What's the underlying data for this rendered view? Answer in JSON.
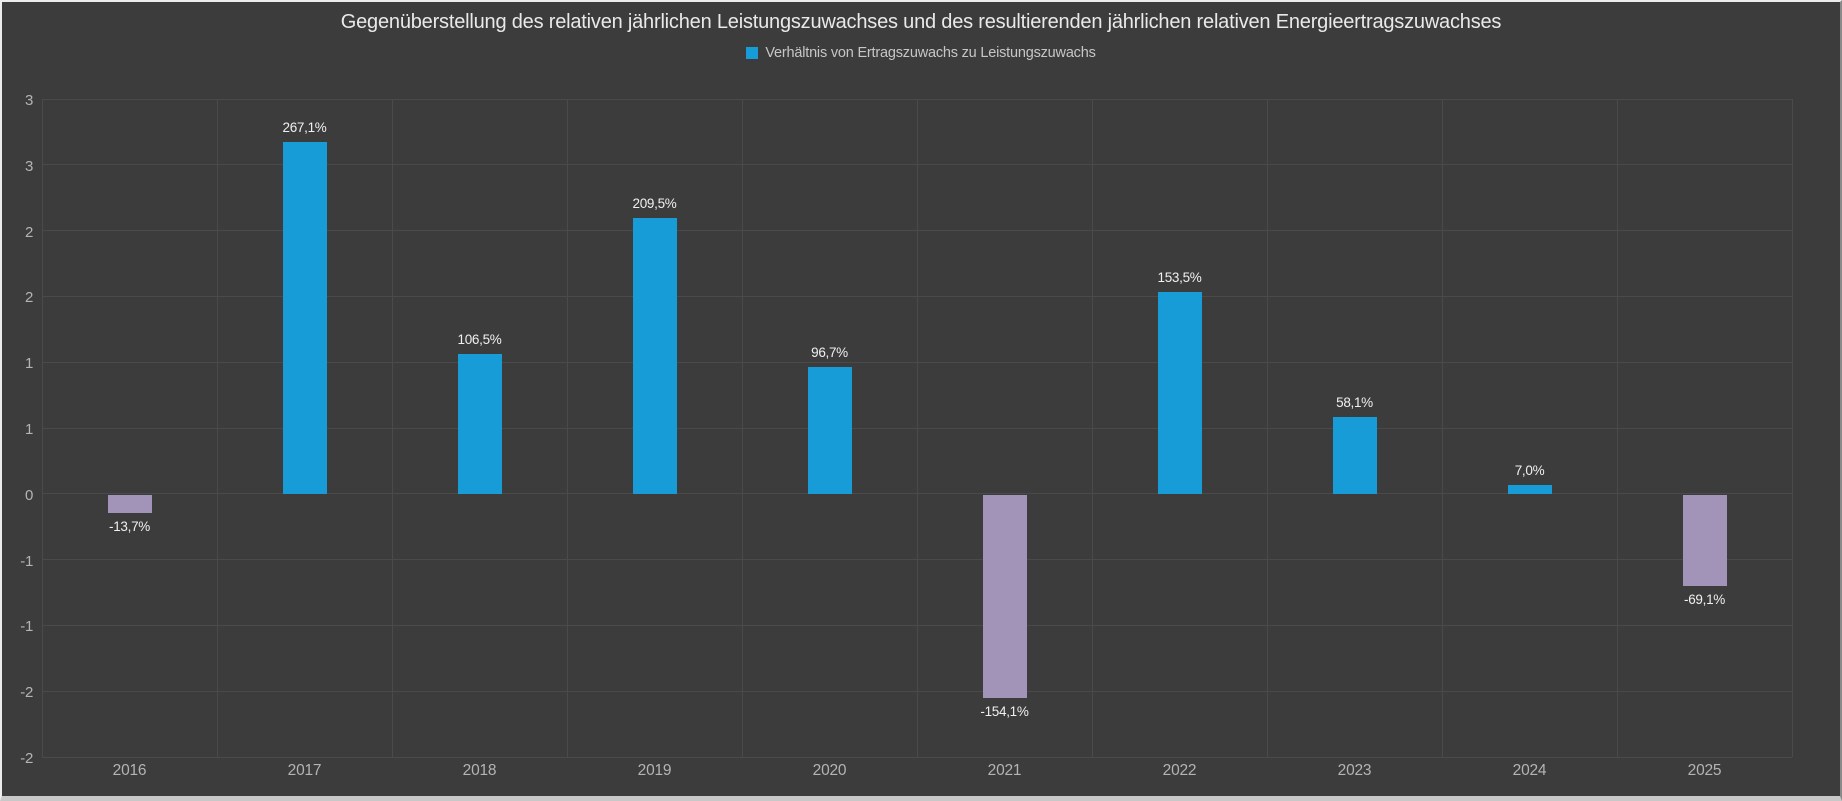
{
  "chart": {
    "title": "Gegenüberstellung des relativen jährlichen Leistungszuwachses und des resultierenden jährlichen relativen Energieertragszuwachses",
    "legend_label": "Verhältnis von Ertragszuwachs zu Leistungszuwachs"
  },
  "chart_data": {
    "type": "bar",
    "title": "Gegenüberstellung des relativen jährlichen Leistungszuwachses und des resultierenden jährlichen relativen Energieertragszuwachses",
    "legend_entries": [
      "Verhältnis von Ertragszuwachs zu Leistungszuwachs"
    ],
    "legend_position": "top",
    "grid": true,
    "categories": [
      "2016",
      "2017",
      "2018",
      "2019",
      "2020",
      "2021",
      "2022",
      "2023",
      "2024",
      "2025"
    ],
    "series": [
      {
        "name": "Verhältnis von Ertragszuwachs zu Leistungszuwachs",
        "unit": "%",
        "values": [
          -13.7,
          267.1,
          106.5,
          209.5,
          96.7,
          -154.1,
          153.5,
          58.1,
          7.0,
          -69.1
        ]
      }
    ],
    "value_labels": [
      "-13,7%",
      "267,1%",
      "106,5%",
      "209,5%",
      "96,7%",
      "-154,1%",
      "153,5%",
      "58,1%",
      "7,0%",
      "-69,1%"
    ],
    "xlabel": "",
    "ylabel": "",
    "ylim": [
      -2.0,
      3.0
    ],
    "ytick_step": 0.5,
    "ytick_labels_rendered": [
      "3",
      "3",
      "2",
      "2",
      "1",
      "1",
      "0",
      "-1",
      "-1",
      "-2",
      "-2"
    ],
    "colors": {
      "positive_bar": "#189CD8",
      "negative_bar": "#A294B8",
      "background": "#3C3C3C",
      "gridline": "#4A4A4A",
      "title_text": "#E9E9E9",
      "legend_text": "#C6C6C6",
      "axis_text": "#B4B4B4",
      "value_text": "#F0F0F0"
    }
  }
}
